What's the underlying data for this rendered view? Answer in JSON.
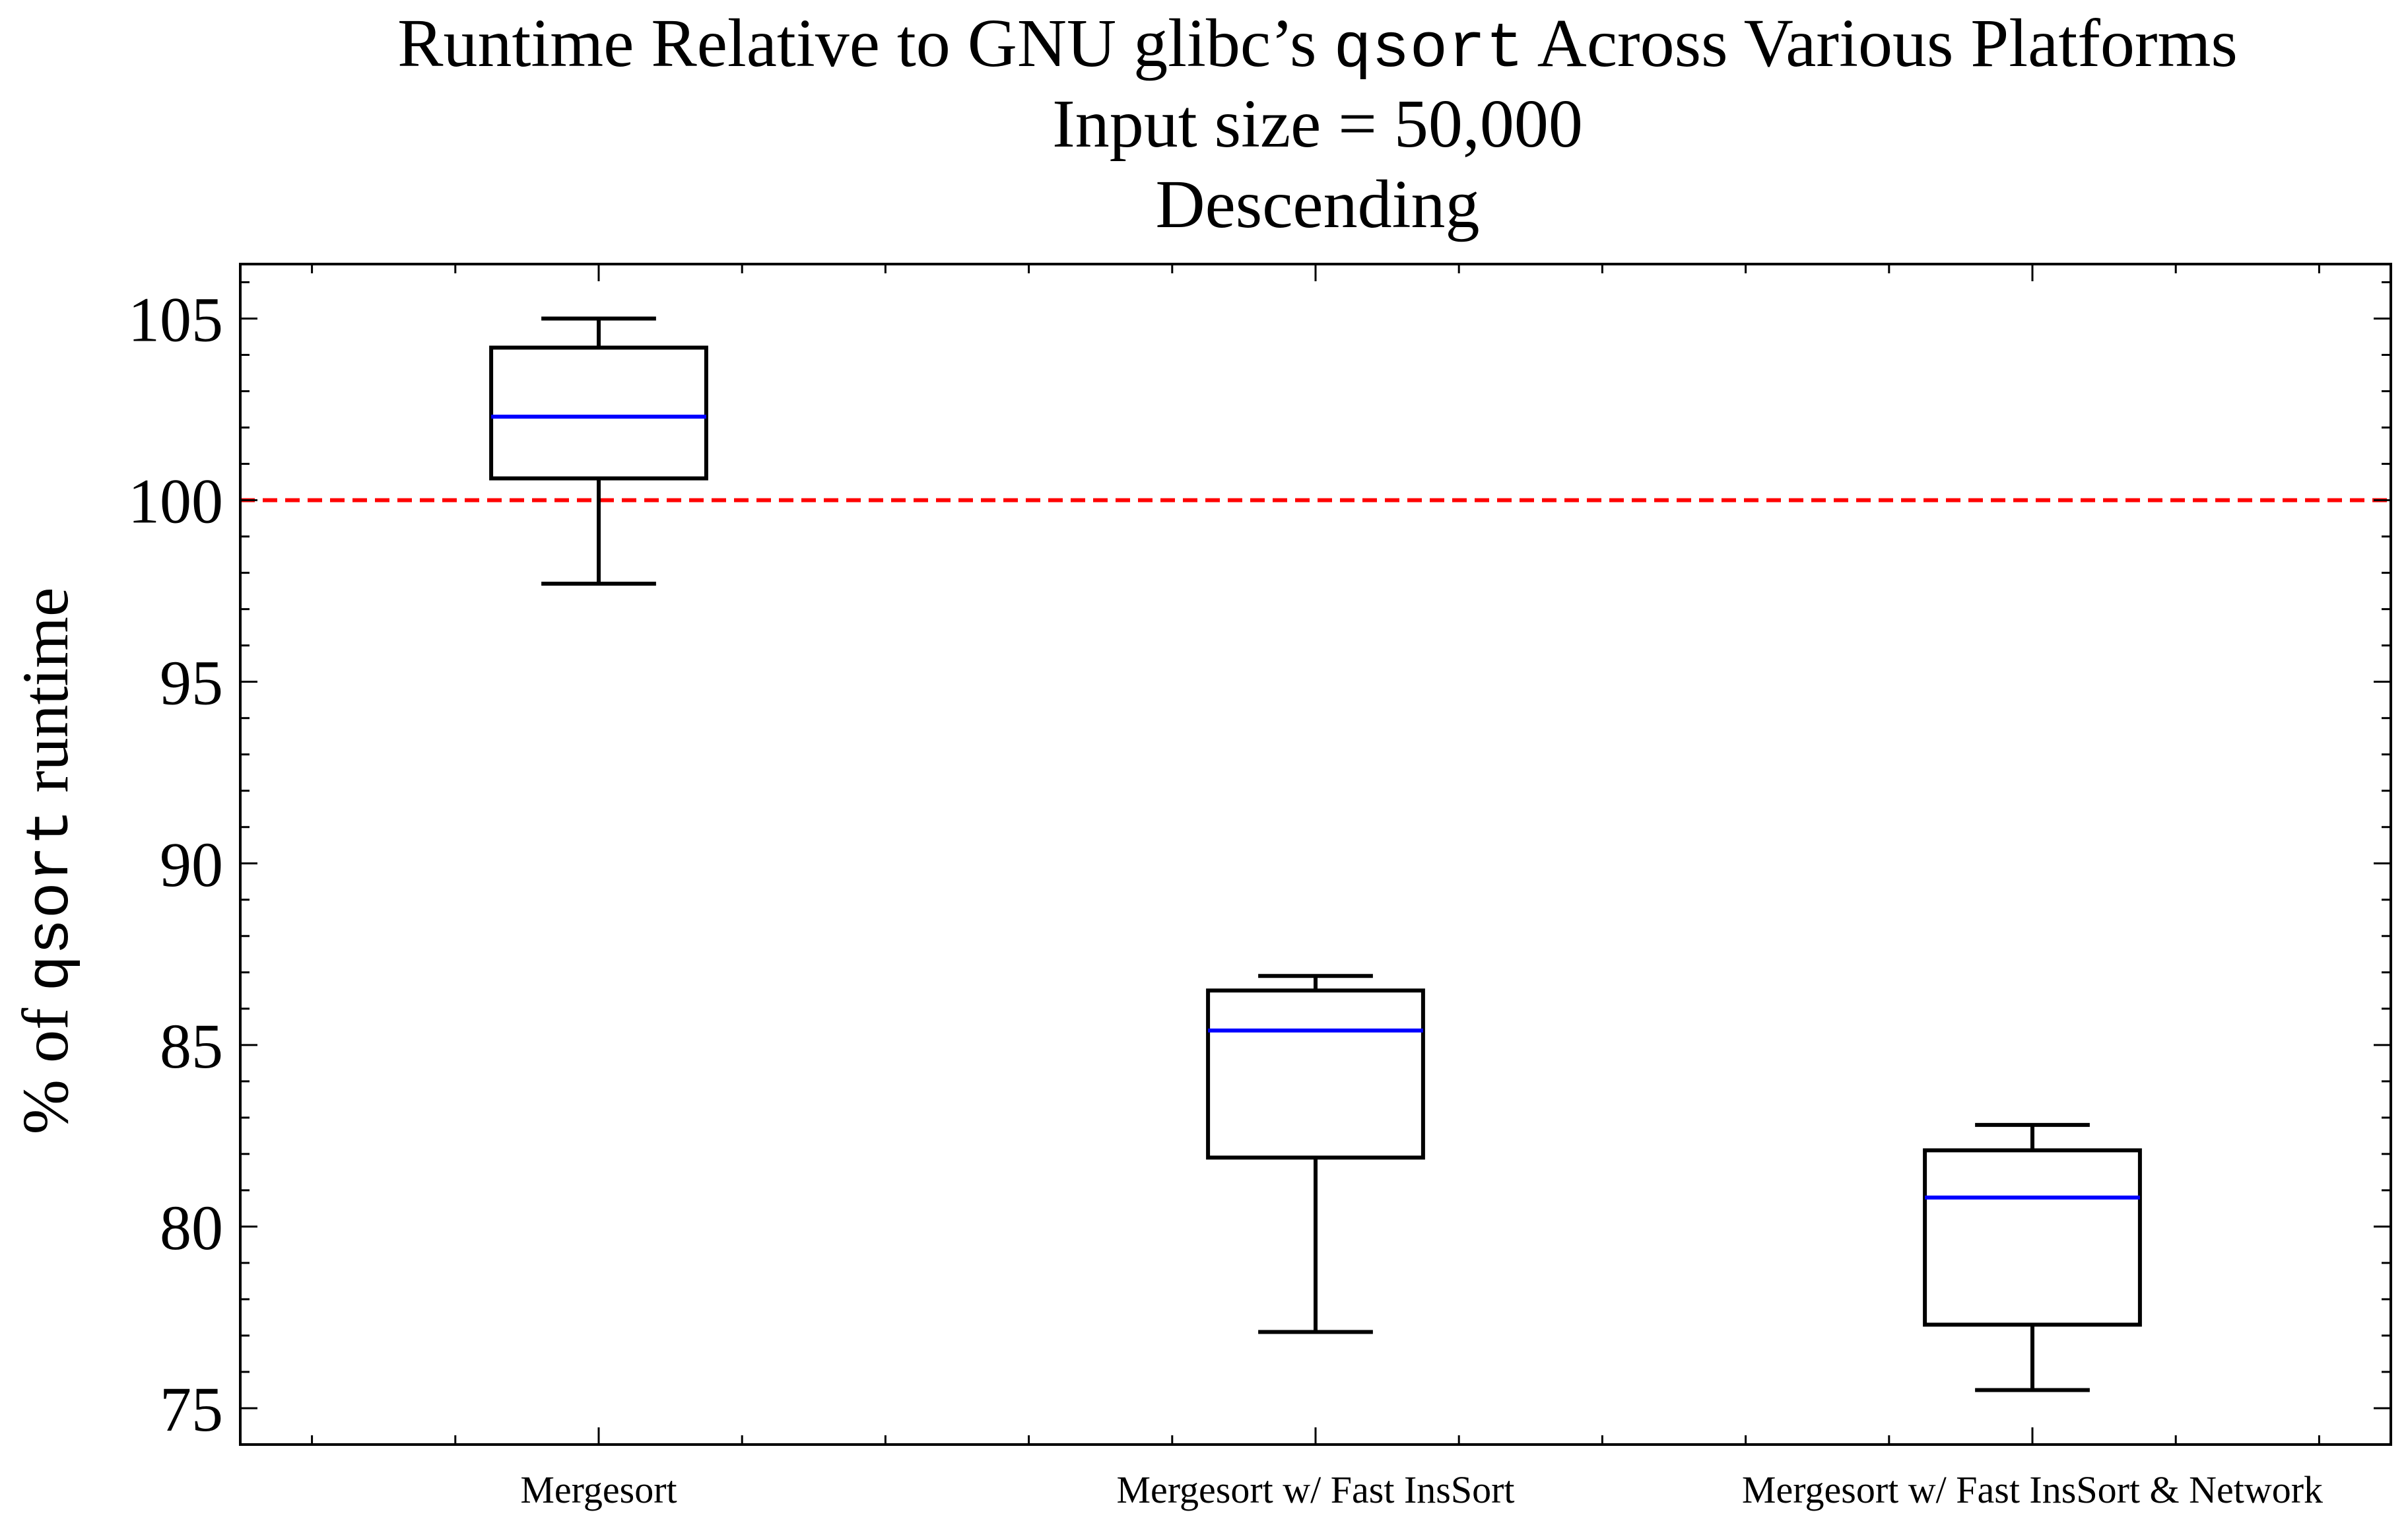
{
  "chart_data": {
    "type": "box",
    "title": {
      "line1_prefix": "Runtime Relative to GNU glibc’s ",
      "line1_code": "qsort",
      "line1_suffix": " Across Various Platforms",
      "line2": "Input size = 50,000",
      "line3": "Descending"
    },
    "ylabel": {
      "prefix": "% of ",
      "code": "qsort",
      "suffix": " runtime"
    },
    "xlabel": "",
    "ylim": [
      74.0,
      106.5
    ],
    "yticks": [
      75,
      80,
      85,
      90,
      95,
      100,
      105
    ],
    "ytick_labels": [
      "75",
      "80",
      "85",
      "90",
      "95",
      "100",
      "105"
    ],
    "yminor_step": 1,
    "categories": [
      "Mergesort",
      "Mergesort w/ Fast InsSort",
      "Mergesort w/ Fast InsSort & Network"
    ],
    "xlim": [
      0.5,
      3.5
    ],
    "xminor_ticks": [
      0.6,
      0.8,
      1.2,
      1.4,
      1.6,
      1.8,
      2.2,
      2.4,
      2.6,
      2.8,
      3.2,
      3.4
    ],
    "boxes": [
      {
        "label": "Mergesort",
        "whisker_low": 97.7,
        "q1": 100.6,
        "median": 102.3,
        "q3": 104.2,
        "whisker_high": 105.0
      },
      {
        "label": "Mergesort w/ Fast InsSort",
        "whisker_low": 77.1,
        "q1": 81.9,
        "median": 85.4,
        "q3": 86.5,
        "whisker_high": 86.9
      },
      {
        "label": "Mergesort w/ Fast InsSort & Network",
        "whisker_low": 75.5,
        "q1": 77.3,
        "median": 80.8,
        "q3": 82.1,
        "whisker_high": 82.8
      }
    ],
    "reference_line": {
      "y": 100,
      "style": "dashed"
    },
    "grid": false,
    "colors": {
      "median": "#0000ff",
      "reference": "#ff0000",
      "box": "#000000",
      "axes": "#000000"
    }
  }
}
